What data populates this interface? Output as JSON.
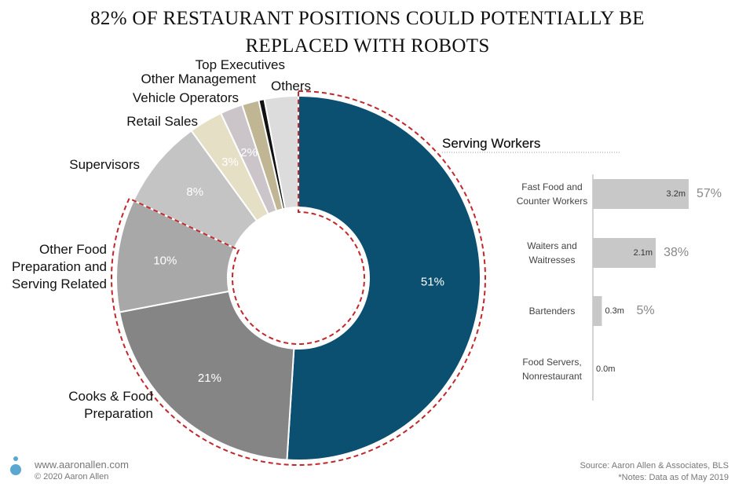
{
  "chart_data": [
    {
      "type": "donut",
      "title": "82% OF RESTAURANT POSITIONS COULD POTENTIALLY BE REPLACED WITH ROBOTS",
      "categories": [
        "Serving Workers",
        "Cooks & Food Preparation",
        "Other Food Preparation and Serving Related",
        "Supervisors",
        "Retail Sales",
        "Vehicle Operators",
        "Other Management",
        "Top Executives",
        "Others"
      ],
      "values": [
        51,
        21,
        10,
        8,
        3,
        2,
        1.5,
        0.5,
        3
      ],
      "value_labels": [
        "51%",
        "21%",
        "10%",
        "8%",
        "3%",
        "2%",
        null,
        null,
        null
      ],
      "colors": [
        "#0b4f71",
        "#858585",
        "#a8a8a8",
        "#c4c4c4",
        "#e5dfc5",
        "#cbc5ca",
        "#c0b693",
        "#111111",
        "#dcdcdc"
      ]
    },
    {
      "type": "bar",
      "title": "Serving Workers",
      "categories": [
        "Fast Food and Counter Workers",
        "Waiters and Waitresses",
        "Bartenders",
        "Food Servers, Nonrestaurant"
      ],
      "values": [
        3.2,
        2.1,
        0.3,
        0.0
      ],
      "value_labels": [
        "3.2m",
        "2.1m",
        "0.3m",
        "0.0m"
      ],
      "shares": [
        57,
        38,
        5,
        null
      ],
      "share_labels": [
        "57%",
        "38%",
        "5%",
        null
      ],
      "color": "#c8c8c8"
    }
  ],
  "footer": {
    "website": "www.aaronallen.com",
    "copyright": "© 2020 Aaron Allen",
    "source": "Source: Aaron Allen & Associates, BLS",
    "note": "*Notes: Data as of May 2019"
  }
}
